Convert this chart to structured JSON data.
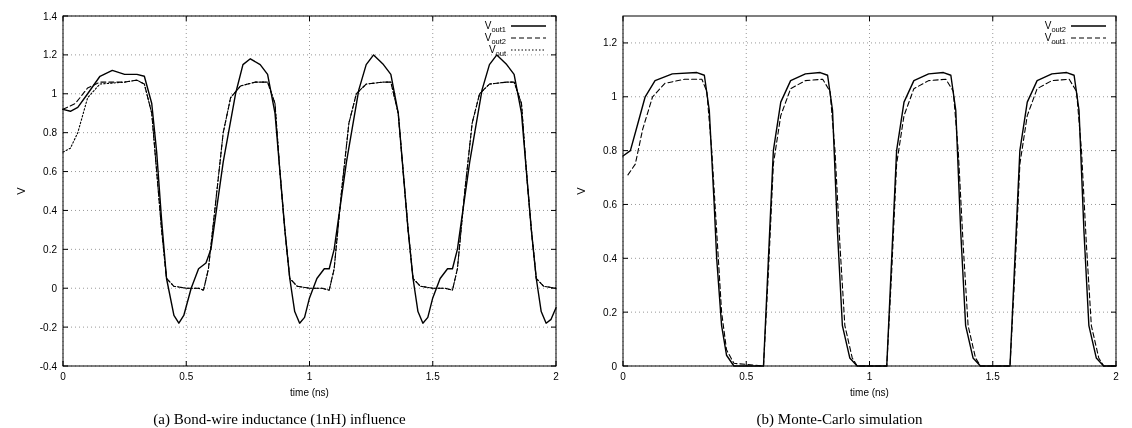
{
  "chart_data": [
    {
      "type": "line",
      "title": "(a) Bond-wire inductance (1nH) influence",
      "xlabel": "time (ns)",
      "ylabel": "V",
      "xlim": [
        0,
        2
      ],
      "xticks": [
        0,
        0.5,
        1,
        1.5,
        2
      ],
      "ylim": [
        -0.4,
        1.4
      ],
      "yticks": [
        -0.4,
        -0.2,
        0,
        0.2,
        0.4,
        0.6,
        0.8,
        1,
        1.2,
        1.4
      ],
      "grid": true,
      "legend": "top right",
      "marker": "none",
      "series": [
        {
          "name": "V$_{out1}$",
          "color": "#000000",
          "line_style": "solid",
          "x": [
            0,
            0.03,
            0.06,
            0.1,
            0.15,
            0.2,
            0.25,
            0.3,
            0.33,
            0.36,
            0.38,
            0.4,
            0.42,
            0.45,
            0.47,
            0.49,
            0.52,
            0.55,
            0.58,
            0.6,
            0.65,
            0.7,
            0.73,
            0.76,
            0.8,
            0.83,
            0.86,
            0.88,
            0.9,
            0.92,
            0.94,
            0.96,
            0.98,
            1,
            1.03,
            1.06,
            1.08,
            1.1,
            1.15,
            1.2,
            1.23,
            1.26,
            1.3,
            1.33,
            1.36,
            1.38,
            1.4,
            1.42,
            1.44,
            1.46,
            1.48,
            1.5,
            1.53,
            1.56,
            1.58,
            1.6,
            1.65,
            1.7,
            1.73,
            1.76,
            1.8,
            1.83,
            1.86,
            1.88,
            1.9,
            1.92,
            1.94,
            1.96,
            1.98,
            2
          ],
          "values": [
            0.92,
            0.91,
            0.93,
            1,
            1.09,
            1.12,
            1.1,
            1.1,
            1.09,
            0.95,
            0.7,
            0.35,
            0.05,
            -0.14,
            -0.18,
            -0.14,
            0,
            0.1,
            0.13,
            0.2,
            0.65,
            1,
            1.15,
            1.18,
            1.15,
            1.1,
            0.9,
            0.6,
            0.3,
            0.05,
            -0.12,
            -0.18,
            -0.15,
            -0.05,
            0.05,
            0.1,
            0.1,
            0.2,
            0.65,
            1.02,
            1.15,
            1.2,
            1.15,
            1.1,
            0.9,
            0.6,
            0.3,
            0.05,
            -0.12,
            -0.18,
            -0.15,
            -0.05,
            0.05,
            0.1,
            0.1,
            0.2,
            0.65,
            1.02,
            1.15,
            1.2,
            1.15,
            1.1,
            0.9,
            0.6,
            0.3,
            0.05,
            -0.12,
            -0.18,
            -0.16,
            -0.1
          ]
        },
        {
          "name": "V$_{out2}$",
          "color": "#000000",
          "line_style": "dashed",
          "x": [
            0,
            0.05,
            0.1,
            0.15,
            0.25,
            0.3,
            0.33,
            0.36,
            0.38,
            0.4,
            0.42,
            0.45,
            0.5,
            0.55,
            0.57,
            0.59,
            0.62,
            0.65,
            0.68,
            0.72,
            0.78,
            0.83,
            0.86,
            0.88,
            0.9,
            0.92,
            0.95,
            1,
            1.05,
            1.08,
            1.1,
            1.13,
            1.16,
            1.19,
            1.23,
            1.3,
            1.33,
            1.36,
            1.38,
            1.4,
            1.42,
            1.45,
            1.5,
            1.55,
            1.58,
            1.6,
            1.63,
            1.66,
            1.69,
            1.73,
            1.8,
            1.83,
            1.86,
            1.88,
            1.9,
            1.92,
            1.95,
            2
          ],
          "values": [
            0.92,
            0.95,
            1.03,
            1.06,
            1.06,
            1.07,
            1.05,
            0.9,
            0.6,
            0.3,
            0.05,
            0.01,
            0,
            0,
            -0.01,
            0.1,
            0.45,
            0.8,
            0.98,
            1.04,
            1.06,
            1.06,
            0.95,
            0.6,
            0.3,
            0.05,
            0.01,
            0,
            0,
            -0.01,
            0.1,
            0.5,
            0.85,
            1,
            1.05,
            1.06,
            1.06,
            0.9,
            0.6,
            0.3,
            0.05,
            0.01,
            0,
            0,
            -0.01,
            0.1,
            0.5,
            0.85,
            1,
            1.05,
            1.06,
            1.06,
            0.95,
            0.6,
            0.3,
            0.05,
            0.01,
            0
          ]
        },
        {
          "name": "V$_{out}$",
          "color": "#000000",
          "line_style": "dotted",
          "x": [
            0,
            0.03,
            0.06,
            0.1,
            0.15,
            0.25,
            0.3,
            0.33,
            0.36,
            0.38,
            0.4,
            0.42,
            0.45,
            0.5,
            0.55,
            0.57,
            0.59,
            0.62,
            0.65,
            0.68,
            0.72,
            0.78,
            0.83,
            0.86,
            0.88,
            0.9,
            0.92,
            0.95,
            1,
            1.05,
            1.08,
            1.1,
            1.13,
            1.16,
            1.19,
            1.23,
            1.3,
            1.33,
            1.36,
            1.38,
            1.4,
            1.42,
            1.45,
            1.5,
            1.55,
            1.58,
            1.6,
            1.63,
            1.66,
            1.69,
            1.73,
            1.8,
            1.83,
            1.86,
            1.88,
            1.9,
            1.92,
            1.95,
            2
          ],
          "values": [
            0.7,
            0.72,
            0.8,
            0.98,
            1.05,
            1.06,
            1.07,
            1.05,
            0.9,
            0.6,
            0.3,
            0.05,
            0.01,
            0,
            0,
            -0.01,
            0.1,
            0.45,
            0.8,
            0.98,
            1.04,
            1.06,
            1.06,
            0.95,
            0.6,
            0.3,
            0.05,
            0.01,
            0,
            0,
            -0.01,
            0.1,
            0.5,
            0.85,
            1,
            1.05,
            1.06,
            1.06,
            0.9,
            0.6,
            0.3,
            0.05,
            0.01,
            0,
            0,
            -0.01,
            0.1,
            0.5,
            0.85,
            1,
            1.05,
            1.06,
            1.06,
            0.95,
            0.6,
            0.3,
            0.05,
            0.01,
            0
          ]
        }
      ]
    },
    {
      "type": "line",
      "title": "(b) Monte-Carlo simulation",
      "xlabel": "time (ns)",
      "ylabel": "V",
      "xlim": [
        0,
        2
      ],
      "xticks": [
        0,
        0.5,
        1,
        1.5,
        2
      ],
      "ylim": [
        0,
        1.3
      ],
      "yticks": [
        0,
        0.2,
        0.4,
        0.6,
        0.8,
        1,
        1.2
      ],
      "grid": true,
      "legend": "top right",
      "marker": "none",
      "series": [
        {
          "name": "V$_{out2}$",
          "color": "#000000",
          "line_style": "solid",
          "x": [
            0,
            0.03,
            0.06,
            0.09,
            0.13,
            0.2,
            0.3,
            0.33,
            0.35,
            0.37,
            0.38,
            0.4,
            0.42,
            0.45,
            0.57,
            0.59,
            0.61,
            0.64,
            0.68,
            0.74,
            0.8,
            0.83,
            0.85,
            0.87,
            0.89,
            0.92,
            0.95,
            1.07,
            1.09,
            1.11,
            1.14,
            1.18,
            1.24,
            1.3,
            1.33,
            1.35,
            1.37,
            1.39,
            1.42,
            1.45,
            1.57,
            1.59,
            1.61,
            1.64,
            1.68,
            1.74,
            1.8,
            1.83,
            1.85,
            1.87,
            1.89,
            1.92,
            1.95,
            2
          ],
          "values": [
            0.78,
            0.8,
            0.9,
            1,
            1.06,
            1.085,
            1.09,
            1.08,
            0.95,
            0.6,
            0.4,
            0.15,
            0.04,
            0,
            0,
            0.4,
            0.8,
            0.98,
            1.06,
            1.085,
            1.09,
            1.08,
            0.95,
            0.5,
            0.15,
            0.03,
            0,
            0,
            0.4,
            0.8,
            0.98,
            1.06,
            1.085,
            1.09,
            1.08,
            0.95,
            0.5,
            0.15,
            0.03,
            0,
            0,
            0.4,
            0.8,
            0.98,
            1.06,
            1.085,
            1.09,
            1.08,
            0.95,
            0.5,
            0.15,
            0.03,
            0,
            0
          ]
        },
        {
          "name": "V$_{out1}$",
          "color": "#000000",
          "line_style": "dashed",
          "x": [
            0.02,
            0.05,
            0.08,
            0.12,
            0.17,
            0.25,
            0.32,
            0.34,
            0.36,
            0.38,
            0.4,
            0.42,
            0.45,
            0.57,
            0.59,
            0.61,
            0.64,
            0.68,
            0.74,
            0.81,
            0.84,
            0.86,
            0.88,
            0.9,
            0.93,
            0.95,
            1.07,
            1.09,
            1.11,
            1.14,
            1.18,
            1.24,
            1.31,
            1.34,
            1.36,
            1.38,
            1.4,
            1.43,
            1.45,
            1.57,
            1.59,
            1.61,
            1.64,
            1.68,
            1.74,
            1.81,
            1.84,
            1.86,
            1.88,
            1.9,
            1.93,
            1.95,
            2
          ],
          "values": [
            0.71,
            0.75,
            0.88,
            1,
            1.05,
            1.065,
            1.065,
            1.02,
            0.8,
            0.5,
            0.2,
            0.06,
            0.01,
            0,
            0.35,
            0.75,
            0.93,
            1.03,
            1.06,
            1.065,
            1.02,
            0.8,
            0.45,
            0.15,
            0.03,
            0,
            0,
            0.35,
            0.75,
            0.93,
            1.03,
            1.06,
            1.065,
            1.02,
            0.8,
            0.45,
            0.15,
            0.03,
            0,
            0,
            0.35,
            0.75,
            0.93,
            1.03,
            1.06,
            1.065,
            1.02,
            0.8,
            0.45,
            0.15,
            0.03,
            0,
            0
          ]
        }
      ]
    }
  ]
}
